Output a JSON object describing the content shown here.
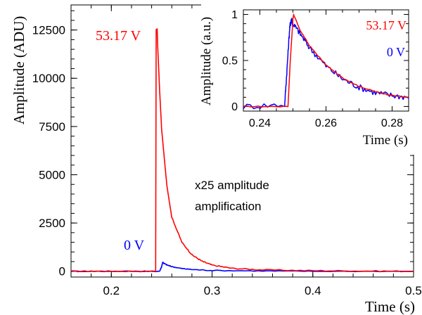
{
  "chart_data": [
    {
      "type": "line",
      "xlabel": "Time (s)",
      "ylabel": "Amplitude (ADU)",
      "xlim": [
        0.16,
        0.5
      ],
      "ylim": [
        -300,
        13800
      ],
      "x_ticks": [
        0.2,
        0.3,
        0.4,
        0.5
      ],
      "x_tick_labels": [
        "0.2",
        "0.3",
        "0.4",
        "0.5"
      ],
      "y_ticks": [
        0,
        2500,
        5000,
        7500,
        10000,
        12500
      ],
      "y_tick_labels": [
        "0",
        "2500",
        "5000",
        "7500",
        "10000",
        "12500"
      ],
      "grid": false,
      "annotations": [
        "x25 amplitude",
        "amplification"
      ],
      "series": [
        {
          "name": "53.17 V",
          "color": "#ff0000",
          "x": [
            0.16,
            0.2,
            0.244,
            0.2445,
            0.2455,
            0.246,
            0.248,
            0.25,
            0.255,
            0.26,
            0.27,
            0.28,
            0.29,
            0.3,
            0.32,
            0.35,
            0.4,
            0.45,
            0.5
          ],
          "y": [
            0,
            0,
            0,
            12500,
            12550,
            11700,
            9300,
            7300,
            4500,
            2800,
            1500,
            850,
            520,
            320,
            150,
            70,
            30,
            10,
            0
          ]
        },
        {
          "name": "0 V",
          "color": "#0000ff",
          "x": [
            0.16,
            0.2,
            0.248,
            0.25,
            0.251,
            0.252,
            0.255,
            0.26,
            0.27,
            0.28,
            0.3,
            0.35,
            0.4,
            0.5
          ],
          "y": [
            0,
            0,
            0,
            250,
            470,
            420,
            330,
            240,
            140,
            90,
            40,
            15,
            0,
            0
          ]
        }
      ]
    },
    {
      "type": "line",
      "xlabel": "Time (s)",
      "ylabel": "Amplitude (a.u.)",
      "xlim": [
        0.235,
        0.285
      ],
      "ylim": [
        -0.05,
        1.05
      ],
      "x_ticks": [
        0.24,
        0.26,
        0.28
      ],
      "x_tick_labels": [
        "0.24",
        "0.26",
        "0.28"
      ],
      "y_ticks": [
        0,
        0.5,
        1
      ],
      "y_tick_labels": [
        "0",
        "0.5",
        "1"
      ],
      "grid": false,
      "series": [
        {
          "name": "53.17 V",
          "color": "#ff0000",
          "x": [
            0.235,
            0.2485,
            0.2492,
            0.25,
            0.2502,
            0.252,
            0.255,
            0.26,
            0.265,
            0.27,
            0.275,
            0.28,
            0.285
          ],
          "y": [
            0,
            0,
            0.5,
            0.95,
            1,
            0.84,
            0.66,
            0.45,
            0.31,
            0.22,
            0.16,
            0.12,
            0.1
          ]
        },
        {
          "name": "0 V",
          "color": "#0000ff",
          "x": [
            0.235,
            0.2475,
            0.2482,
            0.249,
            0.2495,
            0.25,
            0.252,
            0.255,
            0.26,
            0.265,
            0.27,
            0.275,
            0.28,
            0.285
          ],
          "y": [
            0,
            0.02,
            0.4,
            0.85,
            0.95,
            0.9,
            0.8,
            0.64,
            0.44,
            0.3,
            0.21,
            0.15,
            0.12,
            0.1
          ]
        }
      ]
    }
  ]
}
